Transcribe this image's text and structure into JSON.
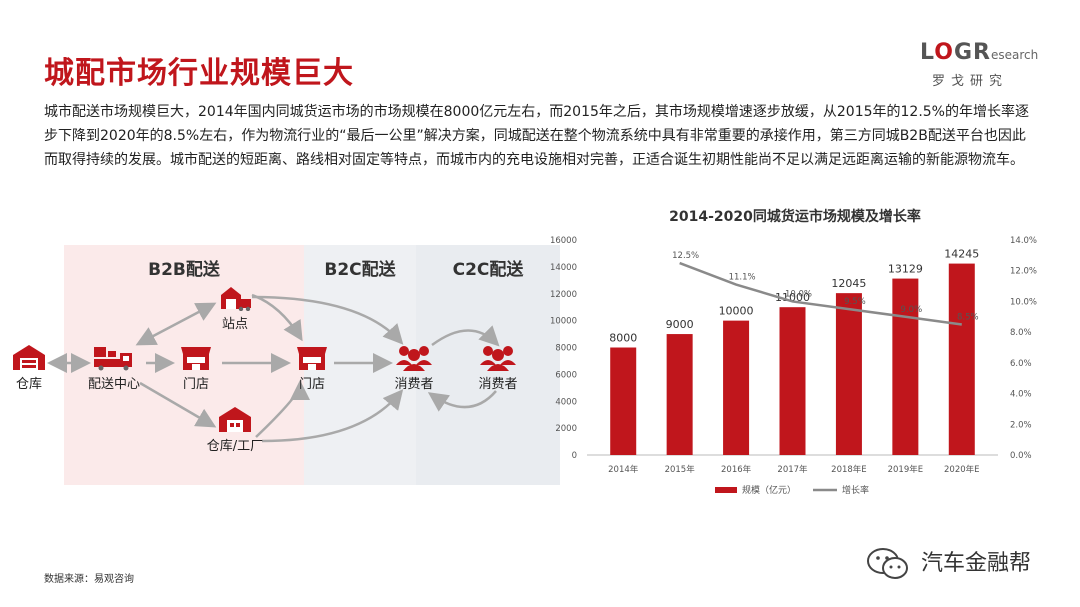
{
  "title": "城配市场行业规模巨大",
  "logo": {
    "mark_l": "L",
    "mark_o": "O",
    "mark_g": "G",
    "mark_r": "R",
    "mark_small": "esearch",
    "cn": "罗戈研究"
  },
  "paragraph": "城市配送市场规模巨大，2014年国内同城货运市场的市场规模在8000亿元左右，而2015年之后，其市场规模增速逐步放缓，从2015年的12.5%的年增长率逐步下降到2020年的8.5%左右，作为物流行业的“最后一公里”解决方案，同城配送在整个物流系统中具有非常重要的承接作用，第三方同城B2B配送平台也因此而取得持续的发展。城市配送的短距离、路线相对固定等特点，而城市内的充电设施相对完善，正适合诞生初期性能尚不足以满足远距离运输的新能源物流车。",
  "flow": {
    "zones": {
      "b2b": "B2B配送",
      "b2c": "B2C配送",
      "c2c": "C2C配送"
    },
    "nodes": {
      "warehouse": "仓库",
      "dc": "配送中心",
      "station": "站点",
      "store1": "门店",
      "store2": "门店",
      "factory": "仓库/工厂",
      "consumer1": "消费者",
      "consumer2": "消费者"
    }
  },
  "chart_data": {
    "type": "bar",
    "title": "2014-2020同城货运市场规模及增长率",
    "categories": [
      "2014年",
      "2015年",
      "2016年",
      "2017年",
      "2018年E",
      "2019年E",
      "2020年E"
    ],
    "series": [
      {
        "name": "规模（亿元）",
        "type": "bar",
        "values": [
          8000,
          9000,
          10000,
          11000,
          12045,
          13129,
          14245
        ],
        "labels": [
          "8000",
          "9000",
          "10000",
          "11000",
          "12045",
          "13129",
          "14245"
        ]
      },
      {
        "name": "增长率",
        "type": "line",
        "values": [
          null,
          12.5,
          11.1,
          10.0,
          9.5,
          9.0,
          8.5
        ],
        "labels": [
          "",
          "12.5%",
          "11.1%",
          "10.0%",
          "9.5%",
          "9.0%",
          "8.5%"
        ]
      }
    ],
    "y_left": {
      "min": 0,
      "max": 16000,
      "ticks": [
        "0",
        "2000",
        "4000",
        "6000",
        "8000",
        "10000",
        "12000",
        "14000",
        "16000"
      ]
    },
    "y_right": {
      "min": 0,
      "max": 14,
      "ticks": [
        "0.0%",
        "2.0%",
        "4.0%",
        "6.0%",
        "8.0%",
        "10.0%",
        "12.0%",
        "14.0%"
      ]
    },
    "legend_position": "bottom",
    "colors": {
      "bar": "#c0161c",
      "line": "#8a8a8a"
    }
  },
  "source": "数据来源：易观咨询",
  "wechat": "汽车金融帮",
  "colors": {
    "accent": "#c0161c"
  }
}
